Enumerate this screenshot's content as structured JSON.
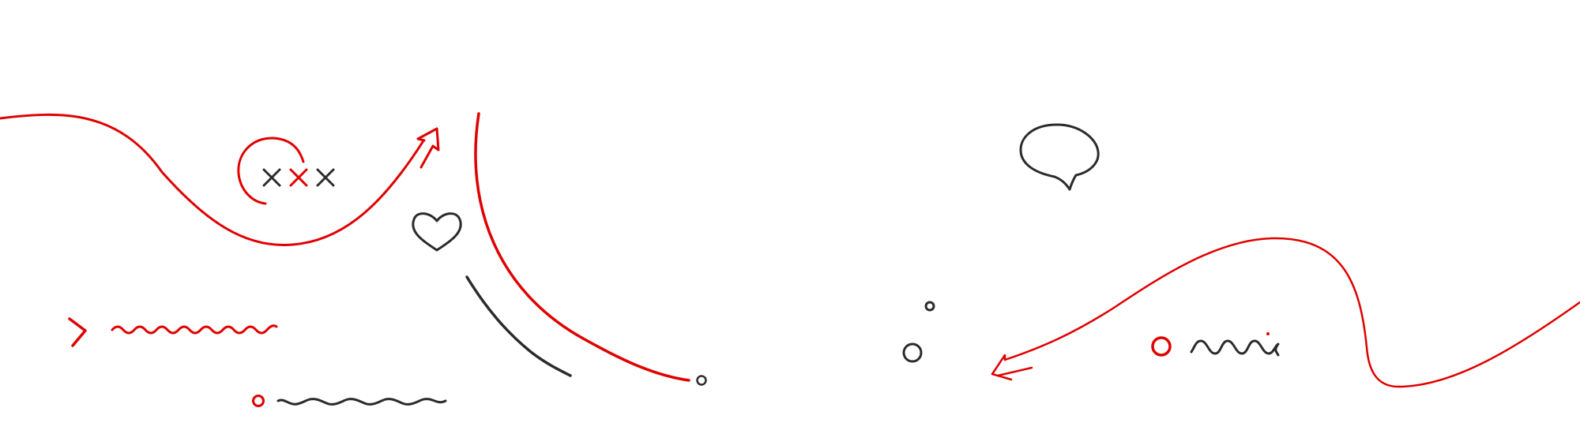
{
  "colors": {
    "accent": "#e00000",
    "ink": "#2b2b2b",
    "background": "#ffffff"
  },
  "elements": [
    "left-swoosh-arrow",
    "red-open-circle",
    "cross-marks",
    "heart-icon",
    "large-red-arc",
    "dark-arc",
    "red-chevron",
    "red-zigzag",
    "small-red-ring",
    "dark-wave-line",
    "small-dark-ring",
    "speech-bubble-icon",
    "right-swoosh-arrow",
    "dark-ring-small",
    "dark-ring-medium",
    "red-ring-right",
    "dark-squiggle"
  ]
}
